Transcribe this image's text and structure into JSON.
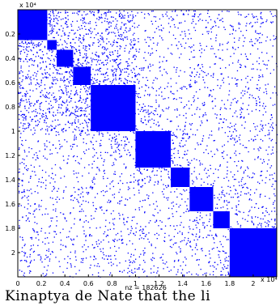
{
  "chart_data": {
    "type": "spy",
    "title": "",
    "xlabel": "nz = 182626",
    "ylabel": "",
    "x_exponent": "x 10⁴",
    "y_exponent": "x 10⁴",
    "xlim": [
      0,
      2.2
    ],
    "ylim": [
      2.2,
      0
    ],
    "xticks": [
      "0",
      "0.2",
      "0.4",
      "0.6",
      "0.8",
      "1",
      "1.2",
      "1.4",
      "1.6",
      "1.8",
      "2"
    ],
    "yticks": [
      "0.2",
      "0.4",
      "0.6",
      "0.8",
      "1",
      "1.2",
      "1.4",
      "1.6",
      "1.8",
      "2"
    ],
    "nz": 182626,
    "marker_color": "#0000ff",
    "blocks": [
      {
        "start": 0.0,
        "end": 0.25
      },
      {
        "start": 0.25,
        "end": 0.33
      },
      {
        "start": 0.33,
        "end": 0.47
      },
      {
        "start": 0.47,
        "end": 0.62
      },
      {
        "start": 0.62,
        "end": 1.0
      },
      {
        "start": 1.0,
        "end": 1.3
      },
      {
        "start": 1.3,
        "end": 1.46
      },
      {
        "start": 1.46,
        "end": 1.66
      },
      {
        "start": 1.66,
        "end": 1.8
      },
      {
        "start": 1.8,
        "end": 2.2
      }
    ]
  },
  "caption": "Kinaptya de Nate that the li"
}
